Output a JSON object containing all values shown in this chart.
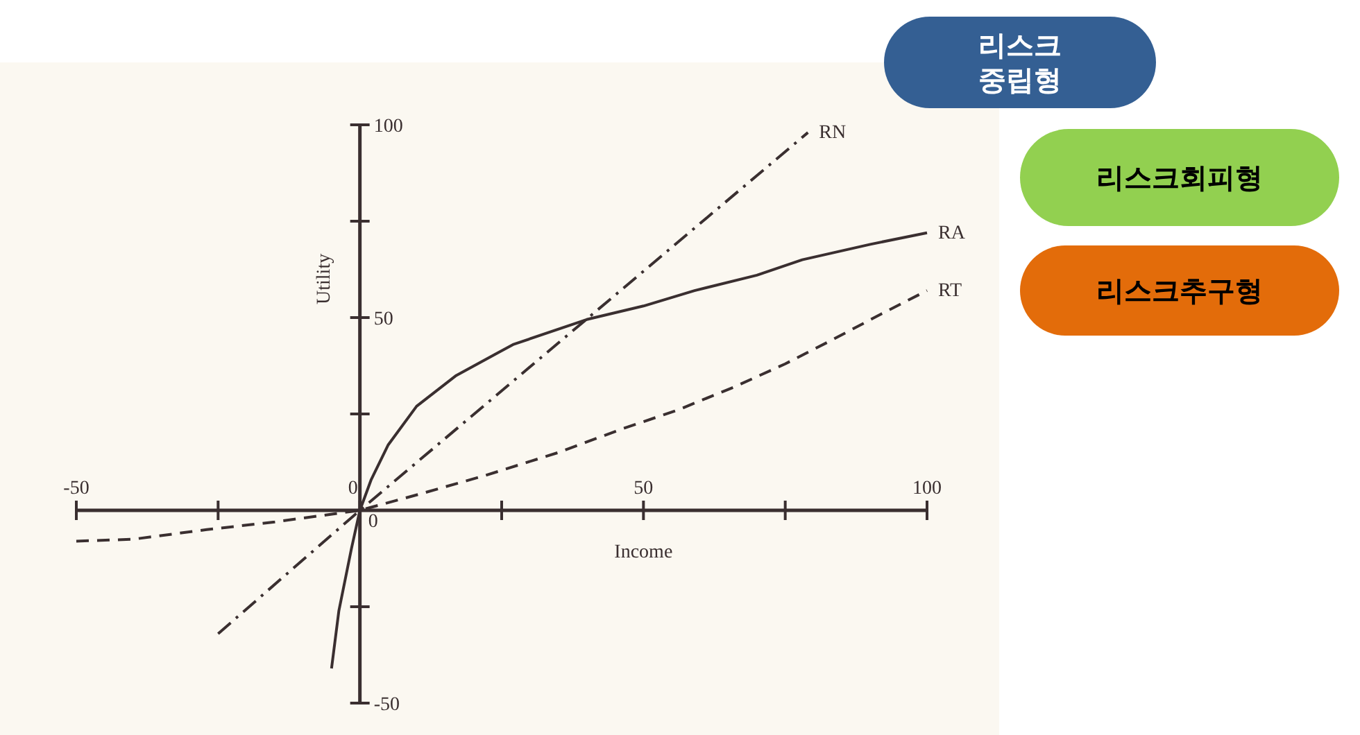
{
  "chart_data": {
    "type": "line",
    "xlabel": "Income",
    "ylabel": "Utility",
    "xlim": [
      -50,
      100
    ],
    "ylim": [
      -50,
      100
    ],
    "xticks": [
      -50,
      {
        "value": -25,
        "label": null
      },
      0,
      {
        "value": 25,
        "label": null
      },
      50,
      {
        "value": 75,
        "label": null
      },
      100
    ],
    "yticks": [
      -50,
      {
        "value": -25,
        "label": null
      },
      0,
      {
        "value": 25,
        "label": null
      },
      50,
      {
        "value": 75,
        "label": null
      },
      100
    ],
    "grid": false,
    "legend": false,
    "marker": "none",
    "series": [
      {
        "name": "RN",
        "color": "#3a2f30",
        "line_style": "dashdot",
        "x": [
          -25,
          0,
          79
        ],
        "values": [
          -32,
          0,
          98
        ]
      },
      {
        "name": "RA",
        "color": "#3a2f30",
        "line_style": "solid",
        "x": [
          -5,
          -3.7,
          -1.5,
          0,
          2,
          5,
          10,
          17,
          27,
          40,
          50,
          59,
          70,
          78,
          90,
          100
        ],
        "values": [
          -41,
          -26,
          -10,
          0,
          8,
          17,
          27,
          35,
          43,
          49.5,
          53,
          57,
          61,
          65,
          69,
          72
        ]
      },
      {
        "name": "RT",
        "color": "#3a2f30",
        "line_style": "dashed",
        "x": [
          -50,
          -40,
          -27,
          -15,
          0,
          10,
          22,
          35,
          46,
          56,
          66,
          75,
          83,
          92,
          100
        ],
        "values": [
          -8,
          -7.5,
          -5,
          -3,
          0,
          4,
          9,
          15,
          21,
          26,
          32,
          38,
          44,
          51,
          57
        ]
      }
    ],
    "annotations": [
      "리스크\n중립형",
      "리스크회피형",
      "리스크추구형"
    ]
  }
}
